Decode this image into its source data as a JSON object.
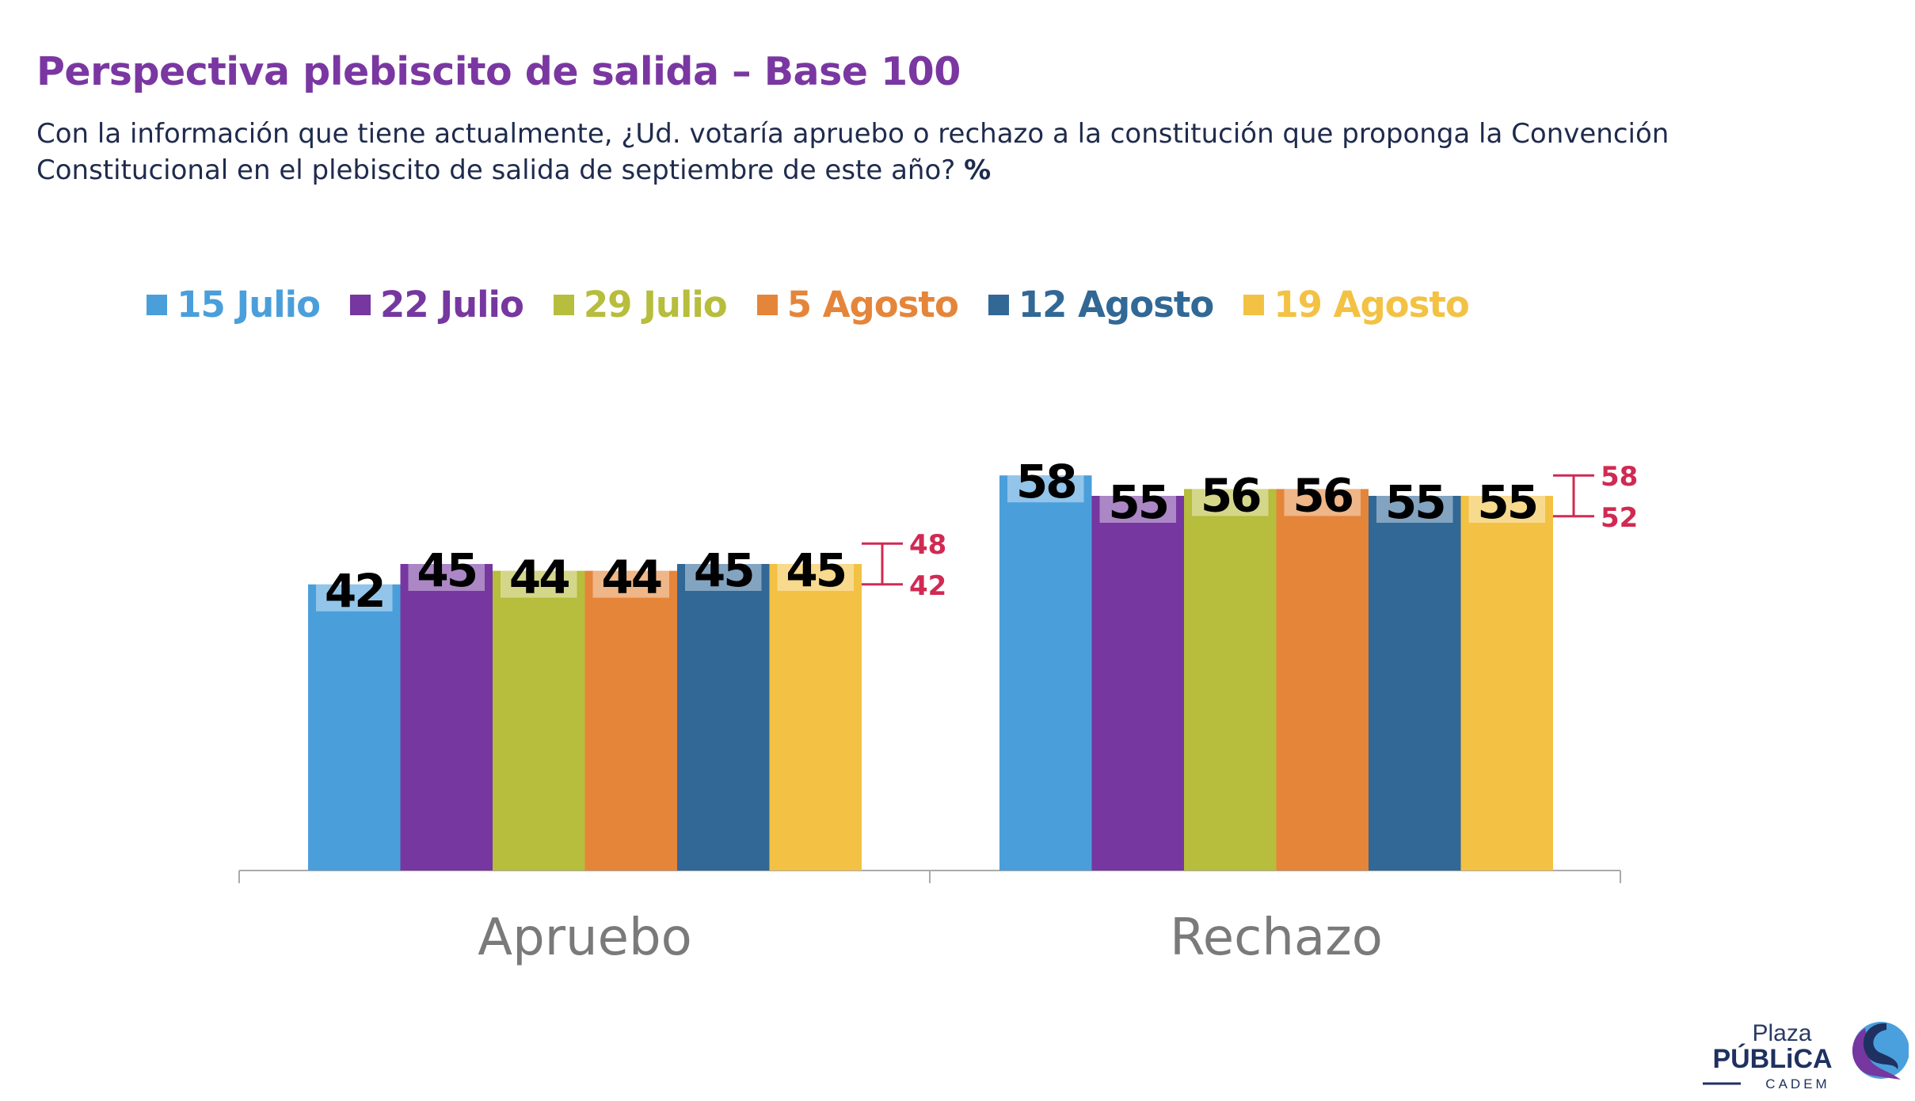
{
  "title": "Perspectiva plebiscito de salida – Base 100",
  "subtitle": "Con la información que tiene actualmente, ¿Ud. votaría apruebo o rechazo a la constitución que proponga la Convención Constitucional en el plebiscito de salida de septiembre de este año?",
  "subtitle_unit": "%",
  "chart_data": {
    "type": "bar",
    "categories": [
      "Apruebo",
      "Rechazo"
    ],
    "series": [
      {
        "name": "15 Julio",
        "color": "#4a9fdb",
        "values": [
          42,
          58
        ]
      },
      {
        "name": "22 Julio",
        "color": "#7637a0",
        "values": [
          45,
          55
        ]
      },
      {
        "name": "29 Julio",
        "color": "#b7bd3c",
        "values": [
          44,
          56
        ]
      },
      {
        "name": "5 Agosto",
        "color": "#e5853a",
        "values": [
          44,
          56
        ]
      },
      {
        "name": "12 Agosto",
        "color": "#316896",
        "values": [
          45,
          55
        ]
      },
      {
        "name": "19 Agosto",
        "color": "#f3c244",
        "values": [
          45,
          55
        ]
      }
    ],
    "error_ranges": [
      {
        "category": "Apruebo",
        "high": 48,
        "low": 42
      },
      {
        "category": "Rechazo",
        "high": 58,
        "low": 52
      }
    ],
    "error_color": "#d02a53",
    "legend_position": "top",
    "grid": false,
    "ylim": [
      0,
      70
    ]
  },
  "logo": {
    "line1": "Plaza",
    "line2": "PÚBLiCA",
    "line3": "CADEM"
  }
}
